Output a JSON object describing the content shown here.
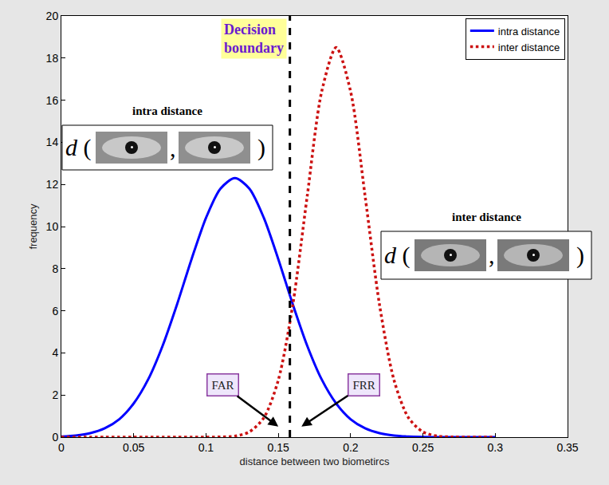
{
  "chart_data": {
    "type": "line",
    "xlabel": "distance between two biometircs",
    "ylabel": "frequency",
    "x": [
      0,
      0.01,
      0.02,
      0.03,
      0.04,
      0.05,
      0.06,
      0.07,
      0.08,
      0.09,
      0.1,
      0.11,
      0.12,
      0.13,
      0.14,
      0.15,
      0.16,
      0.17,
      0.18,
      0.19,
      0.2,
      0.21,
      0.22,
      0.23,
      0.24,
      0.25,
      0.26,
      0.27,
      0.28,
      0.29,
      0.3
    ],
    "series": [
      {
        "name": "intra distance",
        "color": "#0000ff",
        "line_style": "solid",
        "values": [
          0.03,
          0.08,
          0.19,
          0.42,
          0.85,
          1.6,
          2.74,
          4.34,
          6.31,
          8.45,
          10.41,
          11.8,
          12.3,
          11.8,
          10.41,
          8.45,
          6.31,
          4.34,
          2.74,
          1.6,
          0.85,
          0.42,
          0.19,
          0.08,
          0.03,
          0.01,
          0,
          0,
          0,
          0,
          0
        ]
      },
      {
        "name": "inter distance",
        "color": "#cc1111",
        "line_style": "dotted",
        "values": [
          0,
          0,
          0,
          0,
          0,
          0,
          0,
          0,
          0,
          0,
          0,
          0.01,
          0.05,
          0.25,
          0.92,
          2.71,
          6.28,
          11.45,
          16.41,
          18.5,
          16.41,
          11.45,
          6.28,
          2.71,
          0.92,
          0.25,
          0.05,
          0.01,
          0,
          0,
          0
        ]
      }
    ],
    "xlim": [
      0,
      0.35
    ],
    "xticks": [
      0,
      0.05,
      0.1,
      0.15,
      0.2,
      0.25,
      0.3,
      0.35
    ],
    "ylim": [
      0,
      20
    ],
    "yticks": [
      0,
      2,
      4,
      6,
      8,
      10,
      12,
      14,
      16,
      18,
      20
    ],
    "grid": false,
    "legend": "upper right",
    "decision_boundary": {
      "x": 0.158,
      "label": "Decision boundary"
    },
    "annotations": [
      {
        "text": "FAR"
      },
      {
        "text": "FRR"
      }
    ],
    "insets": [
      {
        "title": "intra distance",
        "formula": [
          "d (",
          ",",
          ")"
        ]
      },
      {
        "title": "inter distance",
        "formula": [
          "d (",
          ",",
          ")"
        ]
      }
    ]
  }
}
